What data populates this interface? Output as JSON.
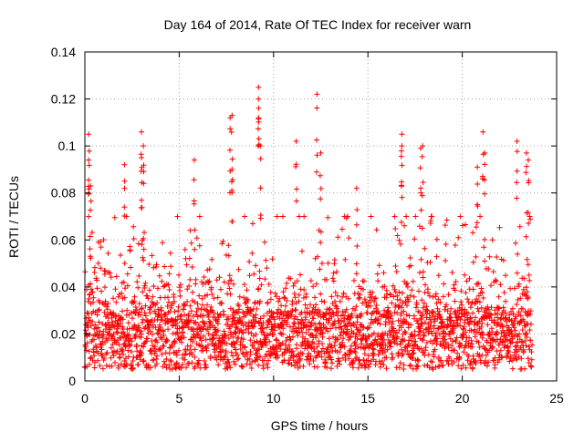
{
  "chart_data": {
    "type": "scatter",
    "title": "Day 164 of 2014, Rate Of TEC Index for receiver warn",
    "xlabel": "GPS time / hours",
    "ylabel": "ROTI / TECUs",
    "xlim": [
      0,
      25
    ],
    "ylim": [
      0,
      0.14
    ],
    "x_ticks": [
      0,
      5,
      10,
      15,
      20,
      25
    ],
    "y_ticks": [
      0,
      0.02,
      0.04,
      0.06,
      0.08,
      0.1,
      0.12,
      0.14
    ],
    "x_tick_labels": [
      "0",
      "5",
      "10",
      "15",
      "20",
      "25"
    ],
    "y_tick_labels": [
      "0",
      "0.02",
      "0.04",
      "0.06",
      "0.08",
      "0.1",
      "0.12",
      "0.14"
    ],
    "grid": true,
    "marker": "+",
    "color": "#ff0000",
    "series": [
      {
        "name": "ROTI",
        "x_range": [
          0.0,
          23.7
        ],
        "baseline_range": [
          0.005,
          0.03
        ],
        "typical_max": 0.06,
        "outliers": [
          {
            "x": 0.2,
            "y": 0.105
          },
          {
            "x": 0.2,
            "y": 0.094
          },
          {
            "x": 0.3,
            "y": 0.083
          },
          {
            "x": 2.1,
            "y": 0.092
          },
          {
            "x": 3.0,
            "y": 0.106
          },
          {
            "x": 3.0,
            "y": 0.095
          },
          {
            "x": 3.1,
            "y": 0.1
          },
          {
            "x": 5.8,
            "y": 0.094
          },
          {
            "x": 7.7,
            "y": 0.112
          },
          {
            "x": 7.8,
            "y": 0.113
          },
          {
            "x": 7.8,
            "y": 0.09
          },
          {
            "x": 9.2,
            "y": 0.125
          },
          {
            "x": 9.2,
            "y": 0.12
          },
          {
            "x": 9.3,
            "y": 0.1
          },
          {
            "x": 11.2,
            "y": 0.102
          },
          {
            "x": 12.3,
            "y": 0.122
          },
          {
            "x": 12.5,
            "y": 0.097
          },
          {
            "x": 14.4,
            "y": 0.082
          },
          {
            "x": 16.8,
            "y": 0.105
          },
          {
            "x": 16.8,
            "y": 0.1
          },
          {
            "x": 17.8,
            "y": 0.099
          },
          {
            "x": 17.9,
            "y": 0.1
          },
          {
            "x": 21.1,
            "y": 0.106
          },
          {
            "x": 21.2,
            "y": 0.097
          },
          {
            "x": 20.8,
            "y": 0.091
          },
          {
            "x": 22.9,
            "y": 0.102
          },
          {
            "x": 23.4,
            "y": 0.097
          },
          {
            "x": 23.5,
            "y": 0.094
          }
        ]
      }
    ]
  }
}
